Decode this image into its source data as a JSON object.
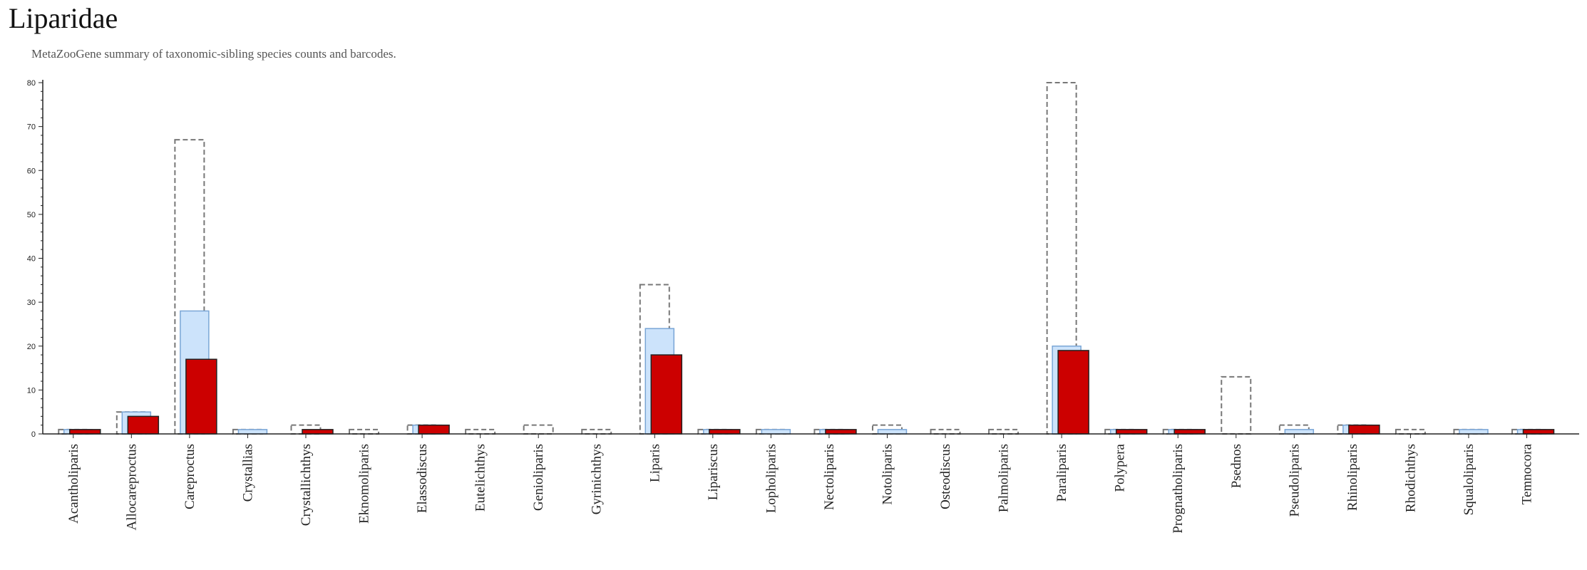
{
  "title": "Liparidae",
  "subtitle": "MetaZooGene summary of taxonomic-sibling species counts and barcodes.",
  "chart_data": {
    "type": "bar",
    "categories": [
      "Acantholiparis",
      "Allocareproctus",
      "Careproctus",
      "Crystallias",
      "Crystallichthys",
      "Eknomoliparis",
      "Elassodiscus",
      "Eutelichthys",
      "Genioliparis",
      "Gyrinichthys",
      "Liparis",
      "Lipariscus",
      "Lopholiparis",
      "Nectoliparis",
      "Notoliparis",
      "Osteodiscus",
      "Palmoliparis",
      "Paraliparis",
      "Polypera",
      "Prognatholiparis",
      "Psednos",
      "Pseudoliparis",
      "Rhinoliparis",
      "Rhodichthys",
      "Squaloliparis",
      "Temnocora"
    ],
    "series": [
      {
        "style": "dashed-outline",
        "color": "#777777",
        "values": [
          1,
          5,
          67,
          1,
          2,
          1,
          2,
          1,
          2,
          1,
          34,
          1,
          1,
          1,
          2,
          1,
          1,
          80,
          1,
          1,
          13,
          2,
          2,
          1,
          1,
          1
        ]
      },
      {
        "style": "light-blue",
        "color": "#cce3fb",
        "values": [
          1,
          5,
          28,
          1,
          0,
          0,
          2,
          0,
          0,
          0,
          24,
          1,
          1,
          1,
          1,
          0,
          0,
          20,
          1,
          1,
          0,
          1,
          2,
          0,
          1,
          1
        ]
      },
      {
        "style": "red",
        "color": "#cc0000",
        "values": [
          1,
          4,
          17,
          0,
          1,
          0,
          2,
          0,
          0,
          0,
          18,
          1,
          0,
          1,
          0,
          0,
          0,
          19,
          1,
          1,
          0,
          0,
          2,
          0,
          0,
          1
        ]
      }
    ],
    "yticks": [
      0,
      10,
      20,
      30,
      40,
      50,
      60,
      70,
      80
    ],
    "ylim": [
      0,
      81
    ],
    "grid": false,
    "legend": "none"
  }
}
